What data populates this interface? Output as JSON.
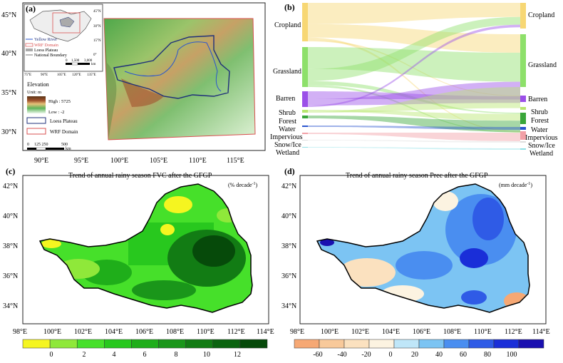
{
  "panel_a": {
    "label": "(a)",
    "lat_ticks": [
      "45°N",
      "40°N",
      "35°N",
      "30°N"
    ],
    "lon_ticks": [
      "90°E",
      "95°E",
      "100°E",
      "105°E",
      "110°E",
      "115°E"
    ],
    "inset_lat": [
      "45°N",
      "30°N",
      "15°N",
      "0°"
    ],
    "inset_lon": [
      "75°E",
      "90°E",
      "105°E",
      "120°E",
      "135°E"
    ],
    "inset_scale": {
      "values": [
        "0",
        "1,500",
        "3,000"
      ],
      "unit": "km"
    },
    "inset_legend": [
      "Yellow River",
      "WRF Domain",
      "Loess Plateau",
      "National Boundary"
    ],
    "elevation": {
      "title": "Elevation",
      "unit": "Unit: m",
      "high": "High : 5725",
      "low": "Low : -2"
    },
    "legend": [
      "Loess Plateau",
      "WRF Domain"
    ],
    "scale": {
      "values": [
        "0",
        "125 250",
        "500"
      ],
      "unit": "km"
    }
  },
  "panel_b": {
    "label": "(b)",
    "left": [
      {
        "name": "Cropland",
        "color": "#f7d774"
      },
      {
        "name": "Grassland",
        "color": "#8de06a"
      },
      {
        "name": "Barren",
        "color": "#9b4fe8"
      },
      {
        "name": "Shrub",
        "color": "#b7e66e"
      },
      {
        "name": "Forest",
        "color": "#3aa63a"
      },
      {
        "name": "Water",
        "color": "#2a55cf"
      },
      {
        "name": "Impervious",
        "color": "#f2a0a6"
      },
      {
        "name": "Snow/Ice",
        "color": "#dddddd"
      },
      {
        "name": "Wetland",
        "color": "#8fe0e6"
      }
    ],
    "right": [
      "Cropland",
      "Grassland",
      "Barren",
      "Shrub",
      "Forest",
      "Water",
      "Impervious",
      "Snow/Ice",
      "Wetland"
    ]
  },
  "panel_c": {
    "label": "(c)",
    "title": "Trend of annual rainy season FVC after the GFGP",
    "unit": "(% decade",
    "unit_sup": "-1",
    "unit_close": ")",
    "lat_ticks": [
      "42°N",
      "40°N",
      "38°N",
      "36°N",
      "34°N"
    ],
    "lon_ticks": [
      "98°E",
      "100°E",
      "102°E",
      "104°E",
      "106°E",
      "108°E",
      "110°E",
      "112°E",
      "114°E"
    ],
    "colorbar": {
      "colors": [
        "#f5f520",
        "#8fe83a",
        "#46e02a",
        "#28c81e",
        "#1fae1a",
        "#1a961a",
        "#127c14",
        "#0b6410",
        "#064a0a"
      ],
      "labels": [
        "0",
        "2",
        "4",
        "6",
        "8",
        "10",
        "12"
      ]
    }
  },
  "panel_d": {
    "label": "(d)",
    "title": "Trend of annual rainy season Prec after the GFGP",
    "unit": "(mm decade",
    "unit_sup": "-1",
    "unit_close": ")",
    "lat_ticks": [
      "42°N",
      "40°N",
      "38°N",
      "36°N",
      "34°N"
    ],
    "lon_ticks": [
      "98°E",
      "100°E",
      "102°E",
      "104°E",
      "106°E",
      "108°E",
      "110°E",
      "112°E",
      "114°E"
    ],
    "colorbar": {
      "colors": [
        "#f6a874",
        "#f8c99a",
        "#fbe1bf",
        "#fcf3e1",
        "#bfe6f8",
        "#7cc4f3",
        "#4a8ef0",
        "#2f5be6",
        "#1a2ed8",
        "#1a10b0"
      ],
      "labels": [
        "-60",
        "-40",
        "-20",
        "0",
        "20",
        "40",
        "60",
        "80",
        "100"
      ]
    }
  }
}
